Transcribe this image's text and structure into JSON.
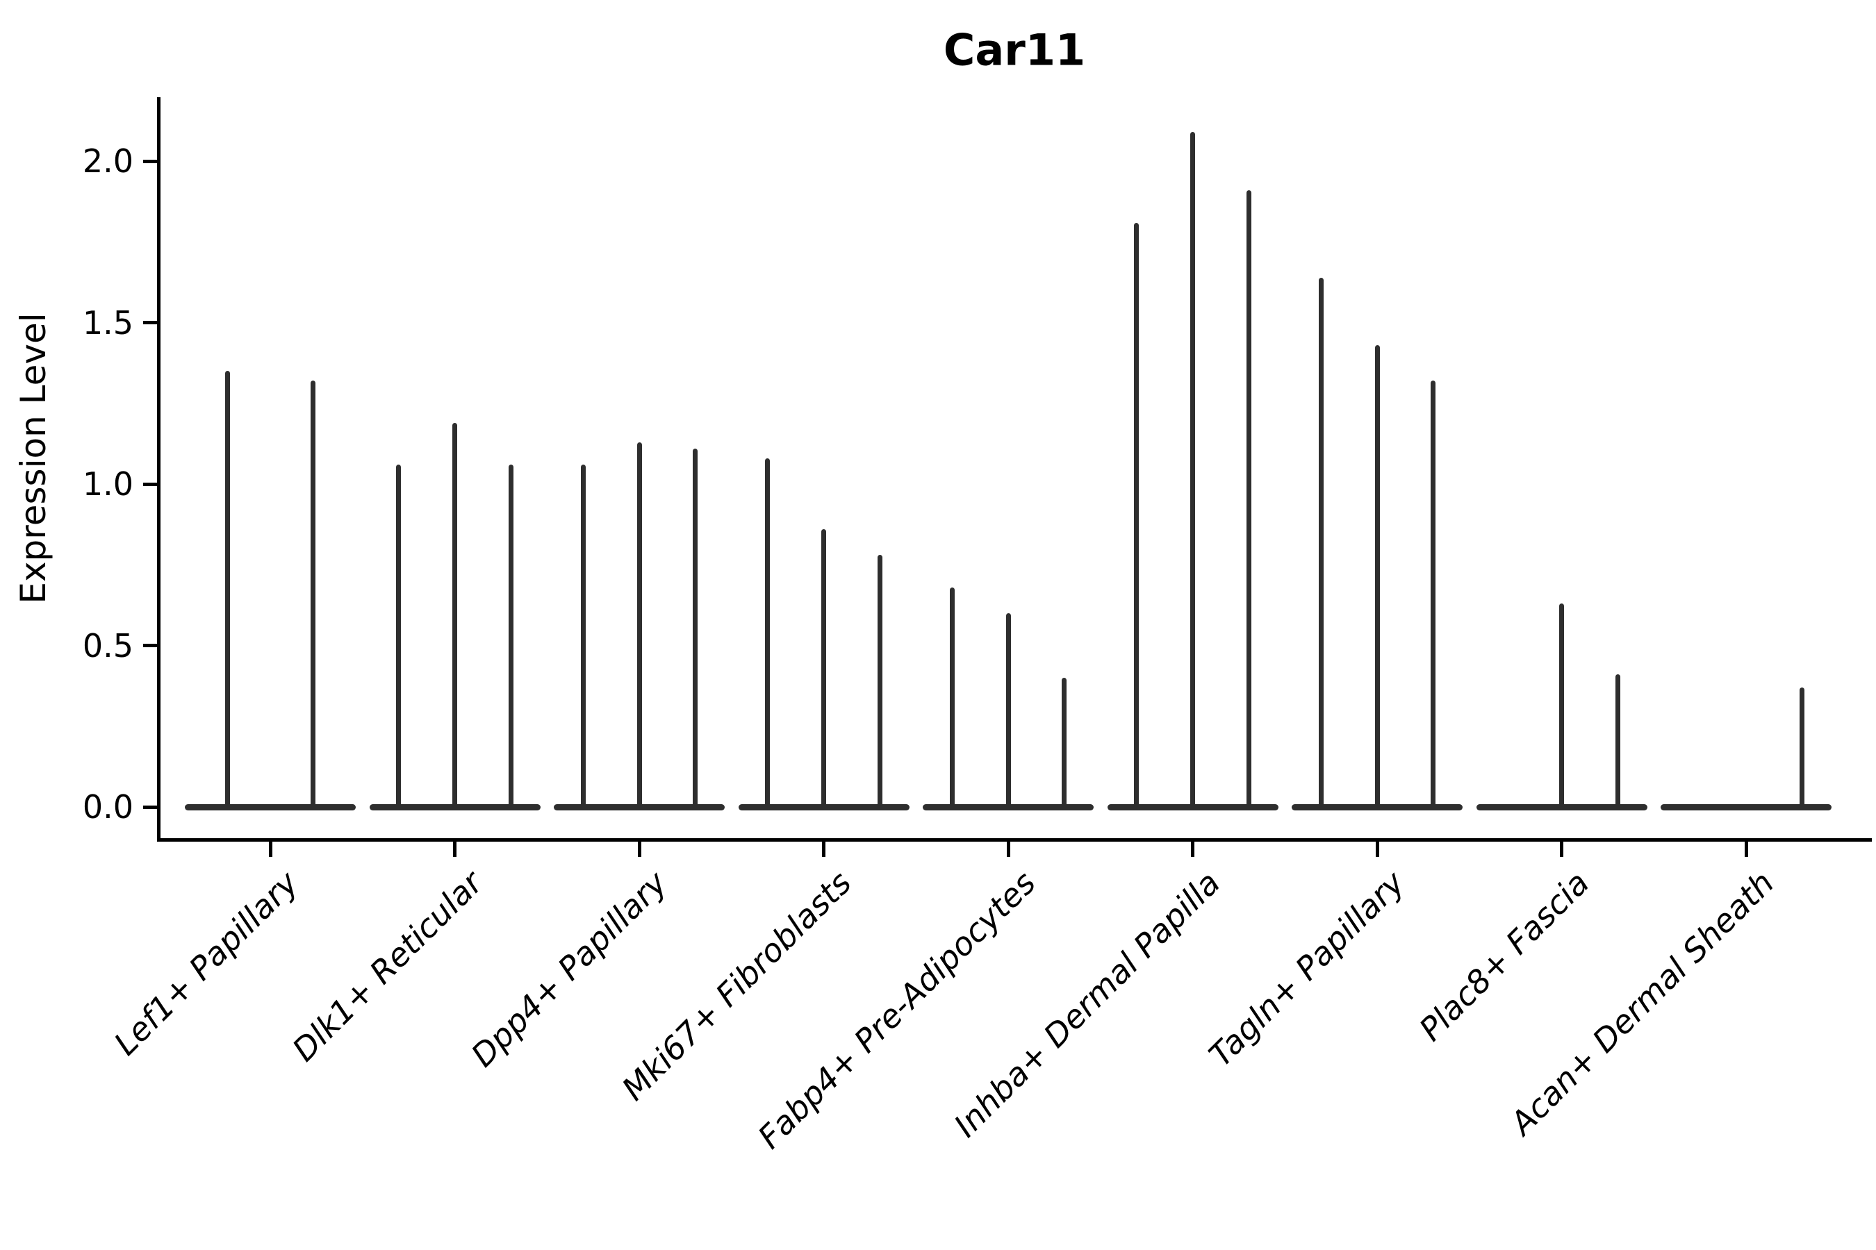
{
  "figure": {
    "background": "#ffffff",
    "ink_color": "#000000",
    "violin_color": "#2e2e2e"
  },
  "chart_data": {
    "type": "violin",
    "title": "Car11",
    "xlabel": "",
    "ylabel": "Expression Level",
    "ylim": [
      0.0,
      2.2
    ],
    "yticks": [
      0.0,
      0.5,
      1.0,
      1.5,
      2.0
    ],
    "ytick_labels": [
      "0.0",
      "0.5",
      "1.0",
      "1.5",
      "2.0"
    ],
    "grid": false,
    "legend": "none",
    "categories": [
      "Lef1+ Papillary",
      "Dlk1+ Reticular",
      "Dpp4+ Papillary",
      "Mki67+ Fibroblasts",
      "Fabp4+ Pre-Adipocytes",
      "Inhba+ Dermal Papilla",
      "Tagln+ Papillary",
      "Plac8+ Fascia",
      "Acan+ Dermal Sheath"
    ],
    "violins_per_category": "up to 3 narrow violins (expression concentrated at 0 with a thin peak to max)",
    "violin_peak_values": [
      [
        1.35,
        1.32
      ],
      [
        1.06,
        1.19,
        1.06
      ],
      [
        1.06,
        1.13,
        1.11
      ],
      [
        1.08,
        0.86,
        0.78
      ],
      [
        0.68,
        0.6,
        0.4
      ],
      [
        1.81,
        2.09,
        1.91
      ],
      [
        1.64,
        1.43,
        1.32
      ],
      [
        0.0,
        0.63,
        0.41
      ],
      [
        0.0,
        0.0,
        0.37
      ]
    ],
    "violin_offsets_frac": [
      [
        -0.23,
        0.23
      ],
      [
        -0.305,
        0,
        0.305
      ],
      [
        -0.305,
        0,
        0.305
      ],
      [
        -0.305,
        0,
        0.305
      ],
      [
        -0.305,
        0,
        0.305
      ],
      [
        -0.305,
        0,
        0.305
      ],
      [
        -0.305,
        0,
        0.305
      ],
      [
        -0.305,
        0,
        0.305
      ],
      [
        -0.305,
        0,
        0.305
      ]
    ]
  }
}
